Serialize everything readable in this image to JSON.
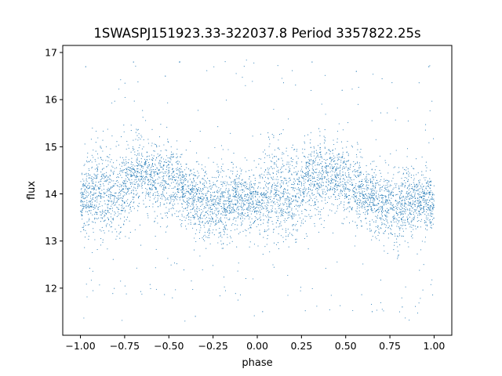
{
  "chart_data": {
    "type": "scatter",
    "title": "1SWASPJ151923.33-322037.8 Period 3357822.25s",
    "xlabel": "phase",
    "ylabel": "flux",
    "xlim": [
      -1.1,
      1.1
    ],
    "ylim": [
      11.0,
      17.15
    ],
    "xticks": [
      -1.0,
      -0.75,
      -0.5,
      -0.25,
      0.0,
      0.25,
      0.5,
      0.75,
      1.0
    ],
    "xtick_labels": [
      "−1.00",
      "−0.75",
      "−0.50",
      "−0.25",
      "0.00",
      "0.25",
      "0.50",
      "0.75",
      "1.00"
    ],
    "yticks": [
      12,
      13,
      14,
      15,
      16,
      17
    ],
    "ytick_labels": [
      "12",
      "13",
      "14",
      "15",
      "16",
      "17"
    ],
    "grid": false,
    "marker_color": "#1f77b4",
    "series": [
      {
        "phase_profile": {
          "x": [
            -1.0,
            -0.9,
            -0.8,
            -0.7,
            -0.6,
            -0.5,
            -0.4,
            -0.3,
            -0.2,
            -0.1,
            0.0,
            0.1,
            0.2,
            0.3,
            0.4,
            0.5,
            0.6,
            0.7,
            0.8,
            0.9,
            1.0
          ],
          "y_mean": [
            13.8,
            14.1,
            13.9,
            14.4,
            14.4,
            14.3,
            14.0,
            13.8,
            13.7,
            13.9,
            13.8,
            14.1,
            13.9,
            14.4,
            14.4,
            14.3,
            14.0,
            13.8,
            13.7,
            13.9,
            13.8
          ],
          "y_low": [
            13.1,
            12.8,
            12.8,
            13.5,
            13.5,
            13.3,
            13.2,
            12.9,
            12.7,
            13.2,
            13.1,
            12.8,
            12.8,
            13.5,
            13.5,
            13.3,
            13.2,
            12.9,
            12.7,
            13.2,
            13.1
          ],
          "y_high": [
            14.6,
            15.3,
            15.0,
            15.5,
            15.2,
            15.4,
            14.8,
            14.6,
            14.6,
            14.7,
            14.6,
            15.3,
            15.0,
            15.5,
            15.2,
            15.4,
            14.8,
            14.6,
            14.6,
            14.7,
            14.6
          ]
        },
        "outliers": {
          "x": [
            -0.97,
            -0.7,
            -0.52,
            -0.44,
            -0.35,
            0.03,
            0.31,
            0.48,
            0.56,
            0.65,
            0.82,
            0.97
          ],
          "y": [
            16.7,
            16.8,
            16.5,
            16.8,
            11.4,
            11.5,
            16.8,
            16.2,
            16.6,
            11.5,
            11.6,
            16.7
          ]
        }
      }
    ]
  }
}
